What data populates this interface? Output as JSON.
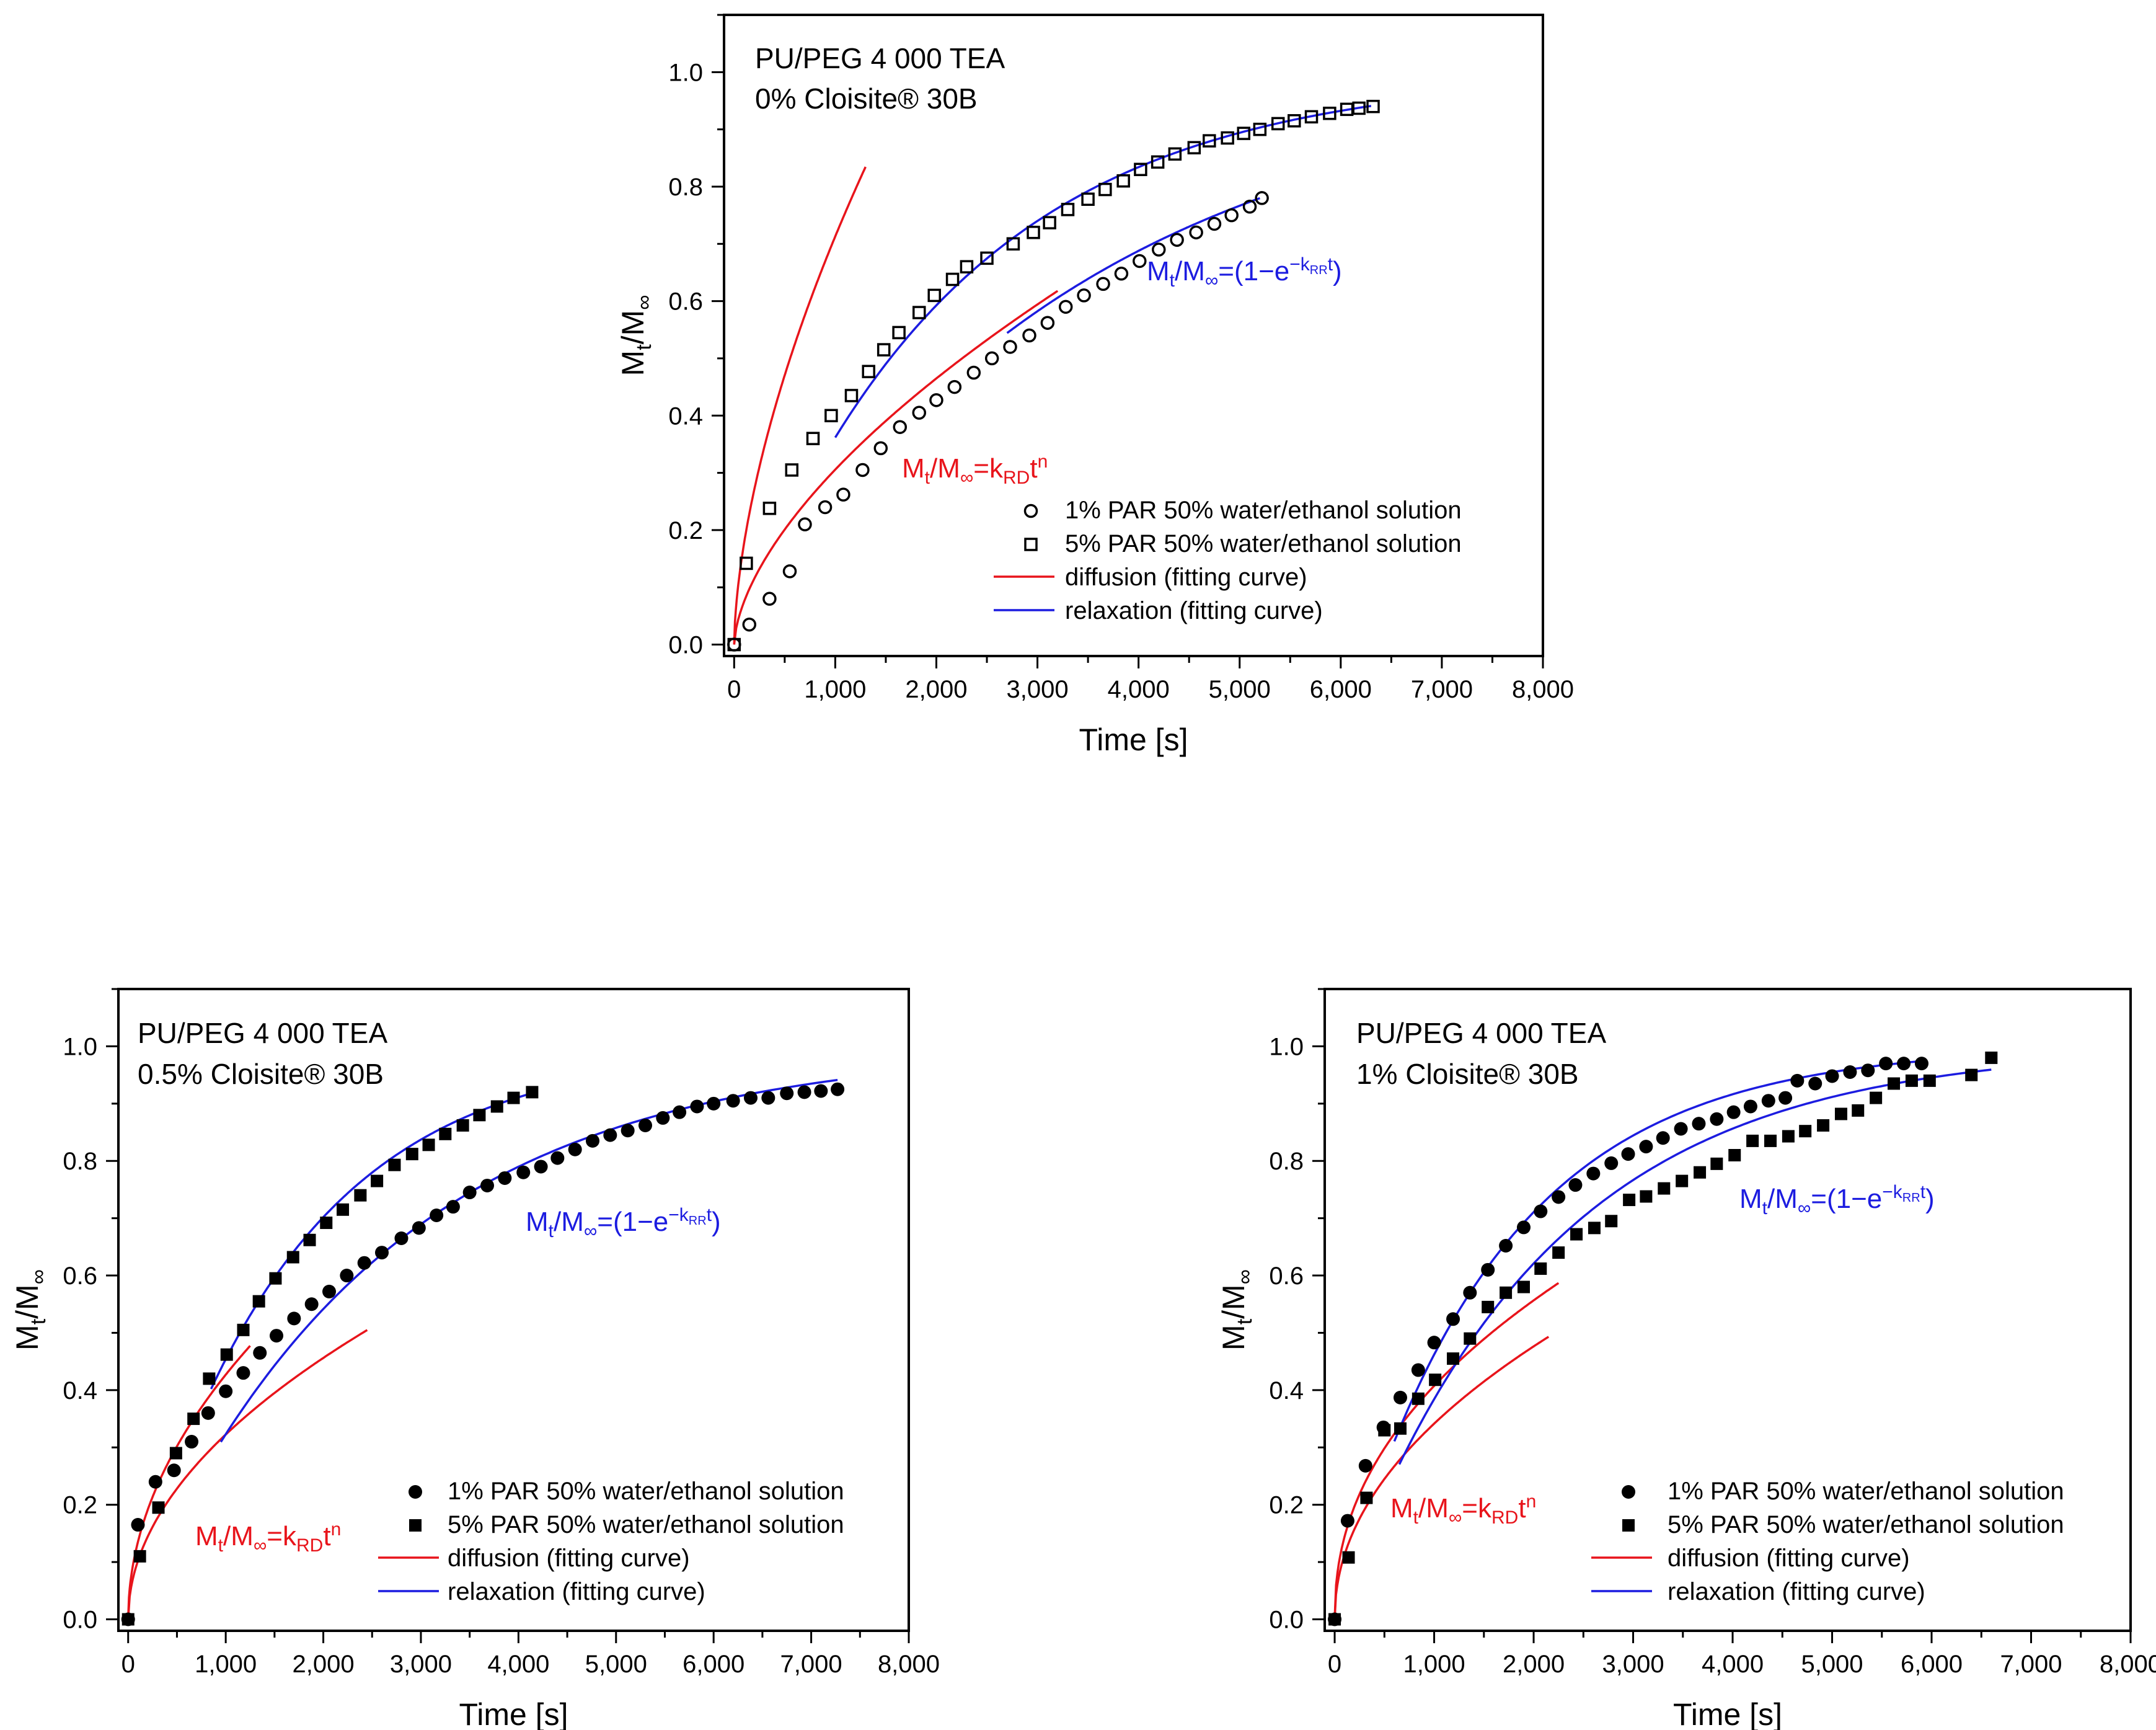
{
  "chart_data": [
    {
      "type": "scatter",
      "title_line1": "PU/PEG 4 000 TEA",
      "title_line2": "0% Cloisite® 30B",
      "xlabel": "Time [s]",
      "ylabel_main": "M",
      "ylabel_sub_t": "t",
      "ylabel_slash": "/M",
      "ylabel_sub_inf": "∞",
      "xlim": [
        -100,
        8000
      ],
      "ylim": [
        -0.02,
        1.1
      ],
      "x_ticks": [
        "0",
        "1,000",
        "2,000",
        "3,000",
        "4,000",
        "5,000",
        "6,000",
        "7,000",
        "8,000"
      ],
      "y_ticks": [
        "0.0",
        "0.2",
        "0.4",
        "0.6",
        "0.8",
        "1.0"
      ],
      "marker_filled": false,
      "eq_diffusion": {
        "m": "M",
        "t": "t",
        "mid": "/M",
        "inf": "∞",
        "eq": "=k",
        "sub": "RD",
        "t2": "t",
        "sup": "n"
      },
      "eq_relaxation": {
        "m": "M",
        "t": "t",
        "mid": "/M",
        "inf": "∞",
        "eq": "=(1−e",
        "sup_pre": "−k",
        "sup_sub": "RR",
        "sup_post": "t",
        "close": ")"
      },
      "legend": [
        "1% PAR 50% water/ethanol solution",
        "5% PAR 50% water/ethanol solution",
        "diffusion (fitting curve)",
        "relaxation (fitting curve)"
      ],
      "series": [
        {
          "name": "1% PAR 50% water/ethanol solution",
          "marker": "circle",
          "x": [
            0,
            150,
            350,
            550,
            700,
            900,
            1080,
            1270,
            1450,
            1640,
            1830,
            2000,
            2180,
            2370,
            2550,
            2730,
            2920,
            3100,
            3280,
            3460,
            3650,
            3830,
            4010,
            4200,
            4380,
            4570,
            4750,
            4920,
            5100,
            5220
          ],
          "y": [
            0.0,
            0.035,
            0.08,
            0.128,
            0.21,
            0.24,
            0.262,
            0.305,
            0.343,
            0.38,
            0.405,
            0.427,
            0.45,
            0.475,
            0.5,
            0.52,
            0.54,
            0.562,
            0.59,
            0.61,
            0.63,
            0.648,
            0.67,
            0.69,
            0.707,
            0.72,
            0.735,
            0.75,
            0.765,
            0.78
          ]
        },
        {
          "name": "5% PAR 50% water/ethanol solution",
          "marker": "square",
          "x": [
            0,
            120,
            350,
            570,
            780,
            960,
            1160,
            1330,
            1480,
            1630,
            1830,
            1980,
            2160,
            2300,
            2500,
            2760,
            2960,
            3120,
            3300,
            3500,
            3670,
            3850,
            4020,
            4190,
            4360,
            4550,
            4700,
            4880,
            5040,
            5200,
            5380,
            5540,
            5710,
            5890,
            6060,
            6180,
            6320
          ],
          "y": [
            0.0,
            0.142,
            0.238,
            0.305,
            0.36,
            0.4,
            0.435,
            0.477,
            0.515,
            0.545,
            0.58,
            0.61,
            0.638,
            0.66,
            0.675,
            0.7,
            0.72,
            0.737,
            0.76,
            0.778,
            0.795,
            0.81,
            0.83,
            0.843,
            0.857,
            0.868,
            0.88,
            0.885,
            0.893,
            0.9,
            0.91,
            0.915,
            0.922,
            0.928,
            0.935,
            0.937,
            0.94
          ]
        }
      ],
      "fits": [
        {
          "kind": "diffusion",
          "color": "#e8141b",
          "x_range": [
            0,
            3200
          ],
          "k": 0.00468,
          "n": 0.605
        },
        {
          "kind": "diffusion",
          "color": "#e8141b",
          "x_range": [
            0,
            1300
          ],
          "k": 0.0113,
          "n": 0.6
        },
        {
          "kind": "relaxation",
          "color": "#1c1ce0",
          "x_range": [
            2700,
            5200
          ],
          "k": 0.000291
        },
        {
          "kind": "relaxation",
          "color": "#1c1ce0",
          "x_range": [
            1000,
            6300
          ],
          "k": 0.000449
        }
      ]
    },
    {
      "type": "scatter",
      "title_line1": "PU/PEG 4 000 TEA",
      "title_line2": "0.5% Cloisite® 30B",
      "xlabel": "Time [s]",
      "ylabel_main": "M",
      "ylabel_sub_t": "t",
      "ylabel_slash": "/M",
      "ylabel_sub_inf": "∞",
      "xlim": [
        -100,
        8000
      ],
      "ylim": [
        -0.02,
        1.1
      ],
      "x_ticks": [
        "0",
        "1,000",
        "2,000",
        "3,000",
        "4,000",
        "5,000",
        "6,000",
        "7,000",
        "8,000"
      ],
      "y_ticks": [
        "0.0",
        "0.2",
        "0.4",
        "0.6",
        "0.8",
        "1.0"
      ],
      "marker_filled": true,
      "eq_diffusion": {
        "m": "M",
        "t": "t",
        "mid": "/M",
        "inf": "∞",
        "eq": "=k",
        "sub": "RD",
        "t2": "t",
        "sup": "n"
      },
      "eq_relaxation": {
        "m": "M",
        "t": "t",
        "mid": "/M",
        "inf": "∞",
        "eq": "=(1−e",
        "sup_pre": "−k",
        "sup_sub": "RR",
        "sup_post": "t",
        "close": ")"
      },
      "legend": [
        "1% PAR 50% water/ethanol solution",
        "5% PAR 50% water/ethanol solution",
        "diffusion (fitting curve)",
        "relaxation (fitting curve)"
      ],
      "series": [
        {
          "name": "1% PAR 50% water/ethanol solution",
          "marker": "circle",
          "x": [
            0,
            100,
            280,
            470,
            650,
            820,
            1000,
            1180,
            1350,
            1520,
            1700,
            1880,
            2060,
            2240,
            2420,
            2600,
            2800,
            2980,
            3160,
            3330,
            3500,
            3680,
            3860,
            4050,
            4230,
            4400,
            4580,
            4760,
            4940,
            5120,
            5300,
            5480,
            5650,
            5830,
            6000,
            6200,
            6380,
            6560,
            6750,
            6930,
            7100,
            7270
          ],
          "y": [
            0.0,
            0.165,
            0.24,
            0.26,
            0.31,
            0.36,
            0.398,
            0.43,
            0.465,
            0.495,
            0.525,
            0.55,
            0.572,
            0.6,
            0.622,
            0.64,
            0.665,
            0.683,
            0.705,
            0.72,
            0.745,
            0.757,
            0.77,
            0.78,
            0.79,
            0.805,
            0.82,
            0.835,
            0.845,
            0.853,
            0.862,
            0.875,
            0.885,
            0.895,
            0.9,
            0.905,
            0.91,
            0.91,
            0.918,
            0.92,
            0.922,
            0.925
          ]
        },
        {
          "name": "5% PAR 50% water/ethanol solution",
          "marker": "square",
          "x": [
            0,
            120,
            310,
            490,
            670,
            830,
            1010,
            1180,
            1340,
            1510,
            1690,
            1860,
            2030,
            2200,
            2380,
            2550,
            2730,
            2910,
            3080,
            3250,
            3430,
            3600,
            3780,
            3950,
            4140
          ],
          "y": [
            0.0,
            0.11,
            0.195,
            0.29,
            0.35,
            0.42,
            0.462,
            0.505,
            0.555,
            0.595,
            0.632,
            0.662,
            0.692,
            0.715,
            0.74,
            0.765,
            0.793,
            0.812,
            0.828,
            0.847,
            0.862,
            0.88,
            0.895,
            0.91,
            0.92
          ]
        }
      ],
      "fits": [
        {
          "kind": "diffusion",
          "color": "#e8141b",
          "x_range": [
            0,
            2450
          ],
          "k": 0.0102,
          "n": 0.5
        },
        {
          "kind": "diffusion",
          "color": "#e8141b",
          "x_range": [
            0,
            1250
          ],
          "k": 0.0135,
          "n": 0.5
        },
        {
          "kind": "relaxation",
          "color": "#1c1ce0",
          "x_range": [
            950,
            7270
          ],
          "k": 0.00039
        },
        {
          "kind": "relaxation",
          "color": "#1c1ce0",
          "x_range": [
            850,
            4150
          ],
          "k": 0.000605
        }
      ]
    },
    {
      "type": "scatter",
      "title_line1": "PU/PEG 4 000 TEA",
      "title_line2": "1% Cloisite® 30B",
      "xlabel": "Time [s]",
      "ylabel_main": "M",
      "ylabel_sub_t": "t",
      "ylabel_slash": "/M",
      "ylabel_sub_inf": "∞",
      "xlim": [
        -100,
        8000
      ],
      "ylim": [
        -0.02,
        1.1
      ],
      "x_ticks": [
        "0",
        "1,000",
        "2,000",
        "3,000",
        "4,000",
        "5,000",
        "6,000",
        "7,000",
        "8,000"
      ],
      "y_ticks": [
        "0.0",
        "0.2",
        "0.4",
        "0.6",
        "0.8",
        "1.0"
      ],
      "marker_filled": true,
      "eq_diffusion": {
        "m": "M",
        "t": "t",
        "mid": "/M",
        "inf": "∞",
        "eq": "=k",
        "sub": "RD",
        "t2": "t",
        "sup": "n"
      },
      "eq_relaxation": {
        "m": "M",
        "t": "t",
        "mid": "/M",
        "inf": "∞",
        "eq": "=(1−e",
        "sup_pre": "−k",
        "sup_sub": "RR",
        "sup_post": "t",
        "close": ")"
      },
      "legend": [
        "1% PAR 50% water/ethanol solution",
        "5% PAR 50% water/ethanol solution",
        "diffusion (fitting curve)",
        "relaxation (fitting curve)"
      ],
      "series": [
        {
          "name": "1% PAR 50% water/ethanol solution",
          "marker": "circle",
          "x": [
            0,
            130,
            310,
            490,
            660,
            840,
            1000,
            1190,
            1360,
            1540,
            1720,
            1900,
            2070,
            2250,
            2420,
            2600,
            2780,
            2950,
            3130,
            3300,
            3480,
            3660,
            3840,
            4010,
            4180,
            4360,
            4530,
            4650,
            4830,
            5000,
            5180,
            5360,
            5540,
            5720,
            5900
          ],
          "y": [
            0.0,
            0.172,
            0.268,
            0.335,
            0.387,
            0.435,
            0.483,
            0.524,
            0.57,
            0.61,
            0.652,
            0.684,
            0.712,
            0.737,
            0.758,
            0.778,
            0.796,
            0.812,
            0.825,
            0.84,
            0.856,
            0.865,
            0.873,
            0.885,
            0.895,
            0.905,
            0.91,
            0.94,
            0.935,
            0.948,
            0.955,
            0.958,
            0.97,
            0.97,
            0.97
          ]
        },
        {
          "name": "5% PAR 50% water/ethanol solution",
          "marker": "square",
          "x": [
            0,
            140,
            320,
            500,
            660,
            840,
            1010,
            1190,
            1360,
            1540,
            1720,
            1900,
            2070,
            2250,
            2430,
            2610,
            2780,
            2960,
            3130,
            3310,
            3490,
            3670,
            3840,
            4020,
            4200,
            4380,
            4560,
            4730,
            4910,
            5090,
            5260,
            5440,
            5620,
            5800,
            5980,
            6400,
            6600
          ],
          "y": [
            0.0,
            0.108,
            0.212,
            0.33,
            0.333,
            0.385,
            0.418,
            0.455,
            0.49,
            0.545,
            0.57,
            0.58,
            0.612,
            0.64,
            0.672,
            0.683,
            0.695,
            0.732,
            0.738,
            0.752,
            0.765,
            0.78,
            0.795,
            0.81,
            0.835,
            0.835,
            0.843,
            0.852,
            0.862,
            0.882,
            0.888,
            0.91,
            0.935,
            0.94,
            0.94,
            0.95,
            0.98
          ]
        }
      ],
      "fits": [
        {
          "kind": "diffusion",
          "color": "#e8141b",
          "x_range": [
            0,
            2250
          ],
          "k": 0.0182,
          "n": 0.45
        },
        {
          "kind": "diffusion",
          "color": "#e8141b",
          "x_range": [
            0,
            2150
          ],
          "k": 0.0124,
          "n": 0.48
        },
        {
          "kind": "relaxation",
          "color": "#1c1ce0",
          "x_range": [
            600,
            5900
          ],
          "k": 0.00062
        },
        {
          "kind": "relaxation",
          "color": "#1c1ce0",
          "x_range": [
            650,
            6600
          ],
          "k": 0.000485
        }
      ]
    }
  ]
}
